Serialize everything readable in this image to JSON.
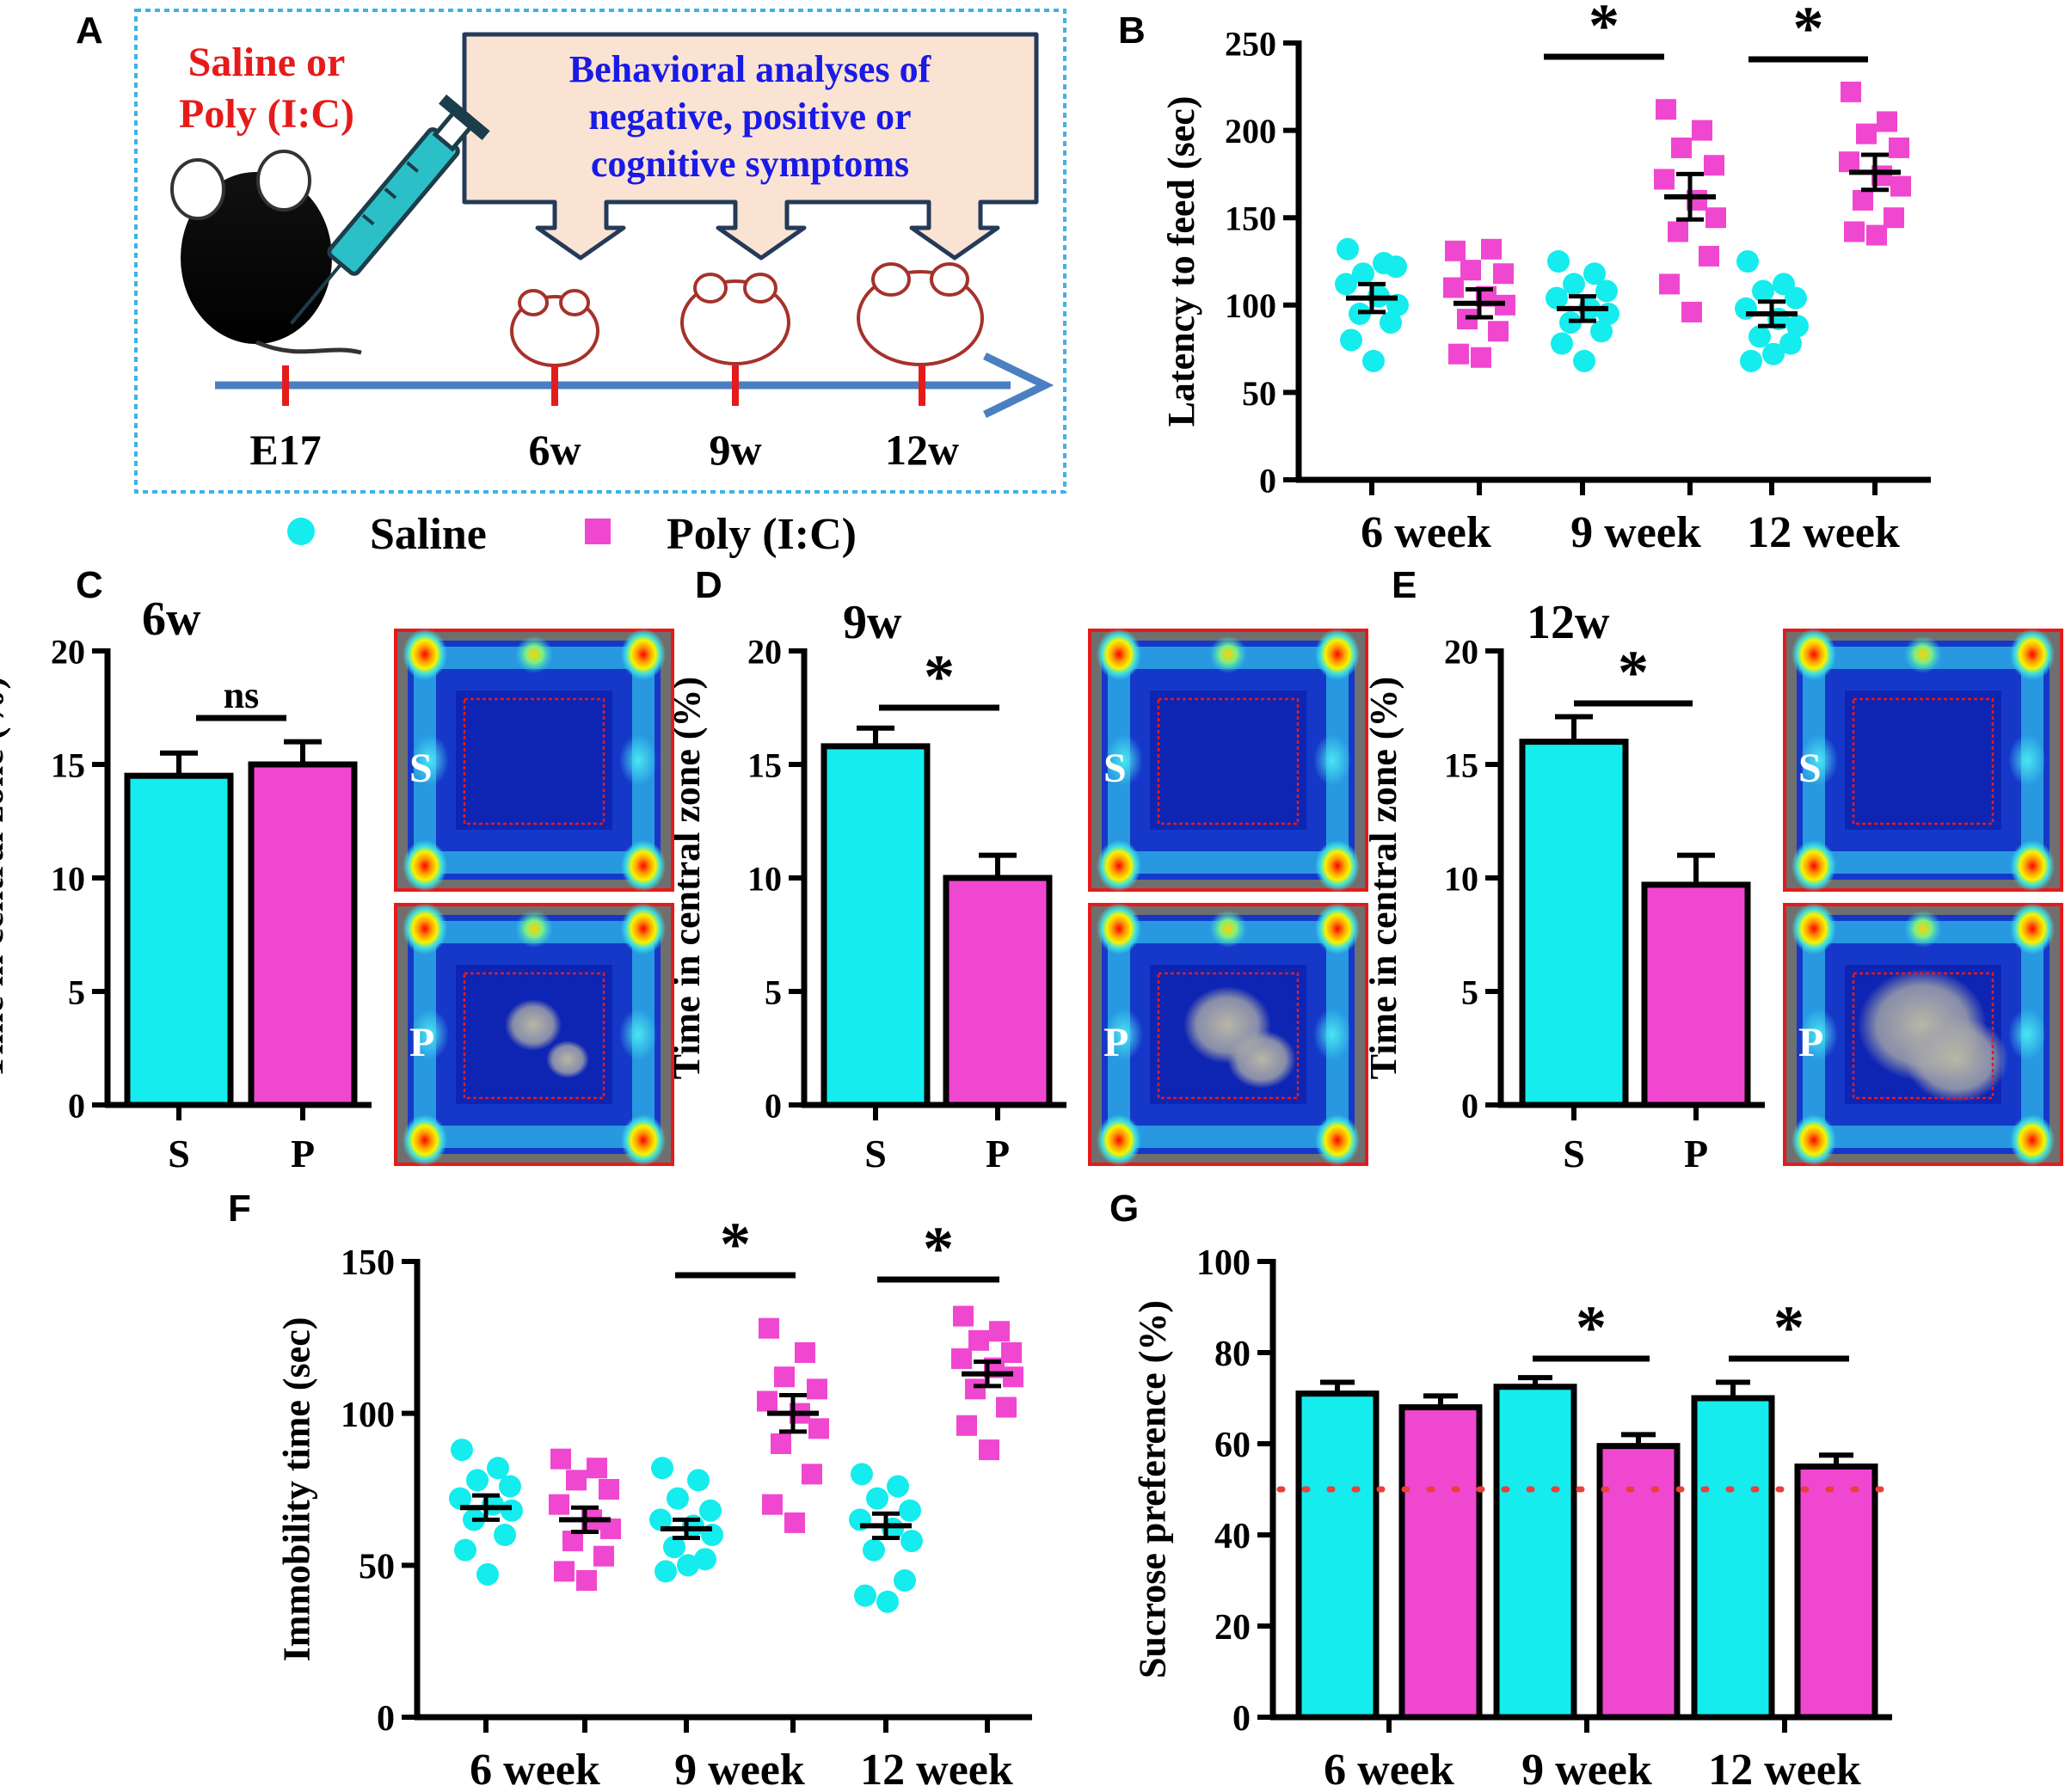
{
  "colors": {
    "saline": "#14eced",
    "poly": "#f047d0",
    "axis": "#000000",
    "threshold": "#e8403a",
    "timeline": "#4a7fc1",
    "tick_red": "#e51b1b"
  },
  "legend": {
    "saline": "Saline",
    "poly": "Poly (I:C)"
  },
  "panel_a": {
    "letter": "A",
    "injection_label": [
      "Saline or",
      "Poly (I:C)"
    ],
    "callout": [
      "Behavioral analyses of",
      "negative, positive or",
      "cognitive symptoms"
    ],
    "timeline": [
      "E17",
      "6w",
      "9w",
      "12w"
    ],
    "icons": [
      "pregnant-mouse-icon",
      "syringe-icon",
      "mouse-pup-icon",
      "arrow-down-icon"
    ]
  },
  "panel_b_letter": "B",
  "panel_c_letter": "C",
  "panel_d_letter": "D",
  "panel_e_letter": "E",
  "panel_f_letter": "F",
  "panel_g_letter": "G",
  "heatmap_labels": {
    "saline": "S",
    "poly": "P"
  },
  "heatmap_icons": [
    "heatmap-icon",
    "central-zone-box-icon"
  ],
  "chart_data": [
    {
      "id": "B",
      "type": "scatter",
      "ylabel": "Latency to feed (sec)",
      "ylim": [
        0,
        250
      ],
      "yticks": [
        0,
        50,
        100,
        150,
        200,
        250
      ],
      "categories": [
        "6 week",
        "9 week",
        "12 week"
      ],
      "groups": [
        {
          "series": "Saline",
          "category": "6 week",
          "mean": 104,
          "sem": 8,
          "points": [
            132,
            124,
            118,
            122,
            112,
            105,
            100,
            95,
            90,
            80,
            68
          ]
        },
        {
          "series": "Poly (I:C)",
          "category": "6 week",
          "mean": 101,
          "sem": 8,
          "points": [
            131,
            132,
            120,
            118,
            110,
            105,
            100,
            92,
            85,
            72,
            70
          ]
        },
        {
          "series": "Saline",
          "category": "9 week",
          "mean": 98,
          "sem": 7,
          "points": [
            125,
            118,
            112,
            108,
            104,
            98,
            95,
            90,
            85,
            78,
            68
          ]
        },
        {
          "series": "Poly (I:C)",
          "category": "9 week",
          "mean": 162,
          "sem": 13,
          "points": [
            212,
            200,
            190,
            180,
            172,
            160,
            150,
            142,
            128,
            112,
            96
          ]
        },
        {
          "series": "Saline",
          "category": "12 week",
          "mean": 95,
          "sem": 7,
          "points": [
            125,
            112,
            108,
            104,
            98,
            92,
            88,
            82,
            78,
            68,
            72
          ]
        },
        {
          "series": "Poly (I:C)",
          "category": "12 week",
          "mean": 176,
          "sem": 10,
          "points": [
            222,
            205,
            198,
            190,
            182,
            174,
            168,
            160,
            150,
            142,
            140
          ]
        }
      ],
      "significance": [
        {
          "category": "9 week",
          "label": "*"
        },
        {
          "category": "12 week",
          "label": "*"
        }
      ]
    },
    {
      "id": "C",
      "type": "bar",
      "title": "6w",
      "ylabel": "Time in central zone (%)",
      "ylim": [
        0,
        20
      ],
      "yticks": [
        0,
        5,
        10,
        15,
        20
      ],
      "categories": [
        "S",
        "P"
      ],
      "values": [
        14.5,
        15.0
      ],
      "errors": [
        1.0,
        1.0
      ],
      "significance": "ns"
    },
    {
      "id": "D",
      "type": "bar",
      "title": "9w",
      "ylabel": "Time in central zone (%)",
      "ylim": [
        0,
        20
      ],
      "yticks": [
        0,
        5,
        10,
        15,
        20
      ],
      "categories": [
        "S",
        "P"
      ],
      "values": [
        15.8,
        10.0
      ],
      "errors": [
        0.8,
        1.0
      ],
      "significance": "*"
    },
    {
      "id": "E",
      "type": "bar",
      "title": "12w",
      "ylabel": "Time in central zone (%)",
      "ylim": [
        0,
        20
      ],
      "yticks": [
        0,
        5,
        10,
        15,
        20
      ],
      "categories": [
        "S",
        "P"
      ],
      "values": [
        16.0,
        9.7
      ],
      "errors": [
        1.1,
        1.3
      ],
      "significance": "*"
    },
    {
      "id": "F",
      "type": "scatter",
      "ylabel": "Immobility time (sec)",
      "ylim": [
        0,
        150
      ],
      "yticks": [
        0,
        50,
        100,
        150
      ],
      "categories": [
        "6 week",
        "9 week",
        "12 week"
      ],
      "groups": [
        {
          "series": "Saline",
          "category": "6 week",
          "mean": 69,
          "sem": 4,
          "points": [
            88,
            82,
            78,
            76,
            72,
            70,
            68,
            65,
            60,
            55,
            47
          ]
        },
        {
          "series": "Poly (I:C)",
          "category": "6 week",
          "mean": 65,
          "sem": 4,
          "points": [
            85,
            82,
            78,
            75,
            70,
            65,
            62,
            58,
            53,
            48,
            45
          ]
        },
        {
          "series": "Saline",
          "category": "9 week",
          "mean": 62,
          "sem": 3,
          "points": [
            82,
            78,
            72,
            68,
            65,
            63,
            60,
            56,
            52,
            48,
            50
          ]
        },
        {
          "series": "Poly (I:C)",
          "category": "9 week",
          "mean": 100,
          "sem": 6,
          "points": [
            128,
            120,
            112,
            108,
            104,
            100,
            95,
            90,
            80,
            70,
            64
          ]
        },
        {
          "series": "Saline",
          "category": "12 week",
          "mean": 63,
          "sem": 4,
          "points": [
            80,
            76,
            72,
            68,
            65,
            62,
            58,
            55,
            45,
            40,
            38
          ]
        },
        {
          "series": "Poly (I:C)",
          "category": "12 week",
          "mean": 113,
          "sem": 4,
          "points": [
            132,
            127,
            124,
            120,
            118,
            115,
            112,
            108,
            102,
            96,
            88
          ]
        }
      ],
      "significance": [
        {
          "category": "9 week",
          "label": "*"
        },
        {
          "category": "12 week",
          "label": "*"
        }
      ]
    },
    {
      "id": "G",
      "type": "bar",
      "ylabel": "Sucrose preference (%)",
      "ylim": [
        0,
        100
      ],
      "yticks": [
        0,
        20,
        40,
        60,
        80,
        100
      ],
      "categories": [
        "6 week",
        "9 week",
        "12 week"
      ],
      "series": [
        {
          "name": "Saline",
          "values": [
            71,
            72.5,
            70
          ],
          "errors": [
            2.5,
            2,
            3.5
          ]
        },
        {
          "name": "Poly (I:C)",
          "values": [
            68,
            59.5,
            55
          ],
          "errors": [
            2.5,
            2.5,
            2.5
          ]
        }
      ],
      "reference_line": 50,
      "significance": [
        {
          "category": "9 week",
          "label": "*"
        },
        {
          "category": "12 week",
          "label": "*"
        }
      ]
    }
  ]
}
